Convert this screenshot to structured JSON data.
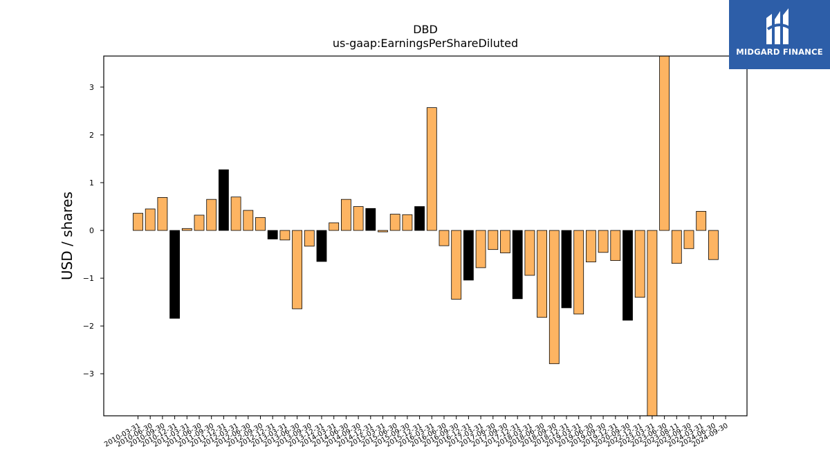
{
  "chart_data": {
    "type": "bar",
    "title": "DBD",
    "subtitle": "us-gaap:EarningsPerShareDiluted",
    "xlabel": "",
    "ylabel": "USD / shares",
    "ylim": [
      -3.88,
      3.65
    ],
    "yticks": [
      3,
      2,
      1,
      0,
      -1,
      -2,
      -3
    ],
    "ytick_labels": [
      "3",
      "2",
      "1",
      "0",
      "−1",
      "−2",
      "−3"
    ],
    "grid": false,
    "colors": {
      "default": "#fdb462",
      "highlight": "#000000",
      "edge": "#000000"
    },
    "categories": [
      "2010-03-31",
      "2010-06-30",
      "2010-09-30",
      "2010-12-31",
      "2011-03-31",
      "2011-06-30",
      "2011-09-30",
      "2011-12-31",
      "2012-03-31",
      "2012-06-30",
      "2012-09-30",
      "2012-12-31",
      "2013-03-31",
      "2013-06-30",
      "2013-09-30",
      "2013-12-31",
      "2014-03-31",
      "2014-06-30",
      "2014-09-30",
      "2014-12-31",
      "2015-03-31",
      "2015-06-30",
      "2015-09-30",
      "2015-12-31",
      "2016-03-31",
      "2016-06-30",
      "2016-09-30",
      "2016-12-31",
      "2017-03-31",
      "2017-06-30",
      "2017-09-30",
      "2017-12-31",
      "2018-03-31",
      "2018-06-30",
      "2018-09-30",
      "2018-12-31",
      "2019-03-31",
      "2019-06-30",
      "2019-09-30",
      "2019-12-31",
      "2020-09-30",
      "2022-12-31",
      "2023-03-31",
      "2023-06-30",
      "2023-08-11",
      "2023-09-30",
      "2024-03-31",
      "2024-06-30",
      "2024-09-30"
    ],
    "tick_labels": [
      "2010-03-31",
      "2010-06-30",
      "2010-09-30",
      "2010-12-31",
      "2011-03-31",
      "2011-06-30",
      "2011-09-30",
      "2011-12-31",
      "2012-03-31",
      "2012-06-30",
      "2012-09-30",
      "2012-12-31",
      "2013-03-31",
      "2013-06-30",
      "2013-09-30",
      "2013-12-31",
      "2014-03-31",
      "2014-06-30",
      "2014-09-30",
      "2014-12-31",
      "2015-03-31",
      "2015-06-30",
      "2015-09-30",
      "2015-12-31",
      "2016-03-31",
      "2016-06-30",
      "2016-09-30",
      "2016-12-31",
      "2017-03-31",
      "2017-06-30",
      "2017-09-30",
      "2017-12-31",
      "2018-03-31",
      "2018-06-30",
      "2018-09-30",
      "2018-12-31",
      "2019-03-31",
      "2019-06-30",
      "2019-09-30",
      "2019-12-31",
      "2020-09-30",
      "2022-12-31",
      "2023-03-31",
      "2023-06-30",
      "2023-08-11",
      "2023-09-30",
      "2024-03-31",
      "2024-06-30",
      "2024-09-30"
    ],
    "values": [
      0.36,
      0.45,
      0.69,
      -1.84,
      0.04,
      0.32,
      0.65,
      1.27,
      0.7,
      0.42,
      0.27,
      -0.18,
      -0.2,
      -1.64,
      -0.33,
      -0.65,
      0.16,
      0.65,
      0.5,
      0.46,
      -0.03,
      0.34,
      0.33,
      0.5,
      2.57,
      -0.32,
      -1.44,
      -1.04,
      -0.78,
      -0.4,
      -0.47,
      -1.43,
      -0.94,
      -1.82,
      -2.79,
      -1.62,
      -1.75,
      -0.66,
      -0.46,
      -0.63,
      -1.88,
      -1.4,
      -3.88,
      3.65,
      -0.69,
      -0.38,
      0.4,
      -0.61,
      null
    ],
    "highlight": [
      false,
      false,
      false,
      true,
      false,
      false,
      false,
      true,
      false,
      false,
      false,
      true,
      false,
      false,
      false,
      true,
      false,
      false,
      false,
      true,
      false,
      false,
      false,
      true,
      false,
      false,
      false,
      true,
      false,
      false,
      false,
      true,
      false,
      false,
      false,
      true,
      false,
      false,
      false,
      false,
      true,
      false,
      false,
      false,
      false,
      false,
      false,
      false,
      false
    ]
  },
  "watermark": {
    "brand": "MIDGARD FINANCE",
    "color": "#2d5ea8"
  }
}
